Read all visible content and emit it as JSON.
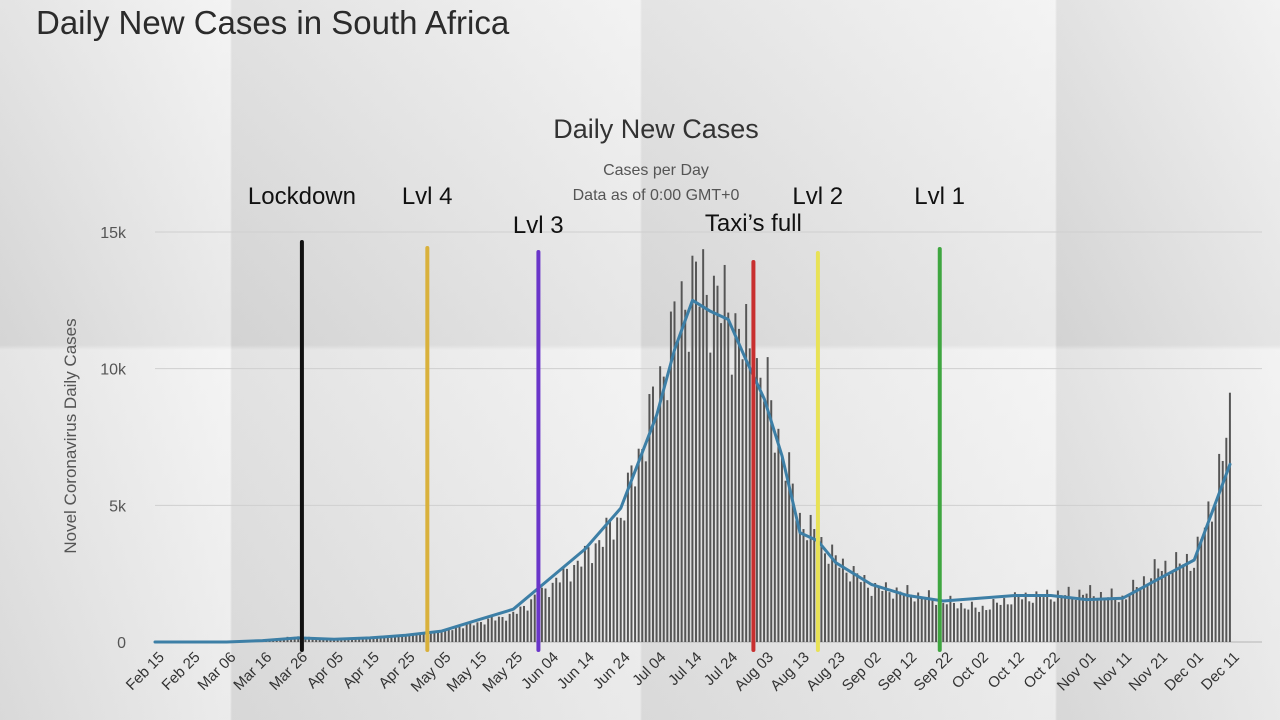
{
  "page_title": "Daily New Cases in South Africa",
  "chart_data": {
    "type": "bar",
    "title": "Daily New Cases",
    "subtitle_lines": [
      "Cases per Day",
      "Data as of 0:00 GMT+0"
    ],
    "ylabel": "Novel Coronavirus Daily Cases",
    "xlabel": "",
    "ylim": [
      0,
      15000
    ],
    "y_ticks": [
      {
        "value": 0,
        "label": "0"
      },
      {
        "value": 5000,
        "label": "5k"
      },
      {
        "value": 10000,
        "label": "10k"
      },
      {
        "value": 15000,
        "label": "15k"
      }
    ],
    "x_ticks": [
      "Feb 15",
      "Feb 25",
      "Mar 06",
      "Mar 16",
      "Mar 26",
      "Apr 05",
      "Apr 15",
      "Apr 25",
      "May 05",
      "May 15",
      "May 25",
      "Jun 04",
      "Jun 14",
      "Jun 24",
      "Jul 04",
      "Jul 14",
      "Jul 24",
      "Aug 03",
      "Aug 13",
      "Aug 23",
      "Sep 02",
      "Sep 12",
      "Sep 22",
      "Oct 02",
      "Oct 12",
      "Oct 22",
      "Nov 01",
      "Nov 11",
      "Nov 21",
      "Dec 01",
      "Dec 11"
    ],
    "grid": true,
    "bar_color": "#555555",
    "line_color": "#3d7fa6",
    "series": [
      {
        "type": "bar",
        "x": [
          "Feb 15",
          "Feb 25",
          "Mar 06",
          "Mar 16",
          "Mar 26",
          "Apr 05",
          "Apr 15",
          "Apr 25",
          "May 05",
          "May 15",
          "May 25",
          "Jun 04",
          "Jun 14",
          "Jun 24",
          "Jul 04",
          "Jul 09",
          "Jul 14",
          "Jul 19",
          "Jul 24",
          "Aug 03",
          "Aug 13",
          "Aug 23",
          "Sep 02",
          "Sep 12",
          "Sep 22",
          "Oct 02",
          "Oct 12",
          "Oct 22",
          "Nov 01",
          "Nov 11",
          "Nov 21",
          "Dec 01",
          "Dec 06",
          "Dec 11"
        ],
        "values": [
          0,
          0,
          5,
          80,
          200,
          80,
          150,
          250,
          400,
          700,
          1000,
          2000,
          3100,
          4600,
          9000,
          11500,
          13100,
          12800,
          12000,
          9500,
          4500,
          3000,
          2000,
          1800,
          1500,
          1200,
          1600,
          1700,
          1800,
          1600,
          2700,
          3000,
          5000,
          8000
        ]
      },
      {
        "type": "line",
        "x": [
          "Feb 15",
          "Mar 06",
          "Mar 16",
          "Mar 26",
          "Apr 05",
          "Apr 15",
          "Apr 25",
          "May 05",
          "May 15",
          "May 25",
          "Jun 04",
          "Jun 14",
          "Jun 24",
          "Jul 04",
          "Jul 09",
          "Jul 14",
          "Jul 19",
          "Jul 24",
          "Jul 29",
          "Aug 03",
          "Aug 08",
          "Aug 13",
          "Aug 18",
          "Aug 23",
          "Sep 02",
          "Sep 12",
          "Sep 22",
          "Oct 02",
          "Oct 12",
          "Oct 22",
          "Nov 01",
          "Nov 11",
          "Nov 21",
          "Dec 01",
          "Dec 11"
        ],
        "values": [
          0,
          0,
          50,
          150,
          100,
          150,
          250,
          400,
          800,
          1200,
          2300,
          3400,
          4900,
          8300,
          10700,
          12500,
          12100,
          11800,
          10300,
          8900,
          6800,
          4000,
          3700,
          2900,
          2100,
          1700,
          1500,
          1600,
          1700,
          1700,
          1550,
          1600,
          2300,
          3000,
          6500
        ]
      }
    ],
    "annotations": [
      {
        "label": "Lockdown",
        "x": "Mar 27",
        "color": "#111111"
      },
      {
        "label": "Lvl 4",
        "x": "May 01",
        "color": "#d9b13c"
      },
      {
        "label": "Lvl 3",
        "x": "Jun 01",
        "color": "#6a35c9"
      },
      {
        "label": "Taxi’s full",
        "x": "Jul 31",
        "color": "#c82f2f"
      },
      {
        "label": "Lvl 2",
        "x": "Aug 18",
        "color": "#e8e256"
      },
      {
        "label": "Lvl 1",
        "x": "Sep 21",
        "color": "#3fa640"
      }
    ]
  }
}
